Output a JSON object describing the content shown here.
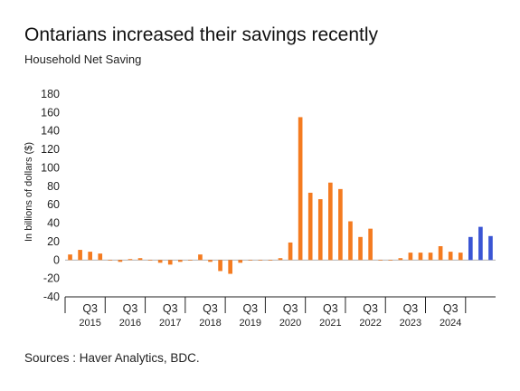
{
  "title": "Ontarians increased their savings recently",
  "subtitle": "Household Net Saving",
  "source": "Sources : Haver Analytics, BDC.",
  "colors": {
    "historical": "#f47b20",
    "forecast": "#3a55d4",
    "axis": "#222222",
    "zero_line": "#999999"
  },
  "chart_data": {
    "type": "bar",
    "ylabel": "In billions of dollars ($)",
    "ylim": [
      -40,
      180
    ],
    "yticks": [
      -40,
      -20,
      0,
      20,
      40,
      60,
      80,
      100,
      120,
      140,
      160,
      180
    ],
    "grid": false,
    "tick_labels": [
      {
        "quarter": "Q3",
        "year": "2015"
      },
      {
        "quarter": "Q3",
        "year": "2016"
      },
      {
        "quarter": "Q3",
        "year": "2017"
      },
      {
        "quarter": "Q3",
        "year": "2018"
      },
      {
        "quarter": "Q3",
        "year": "2019"
      },
      {
        "quarter": "Q3",
        "year": "2020"
      },
      {
        "quarter": "Q3",
        "year": "2021"
      },
      {
        "quarter": "Q3",
        "year": "2022"
      },
      {
        "quarter": "Q3",
        "year": "2023"
      },
      {
        "quarter": "Q3",
        "year": "2024"
      }
    ],
    "series": [
      {
        "values": [
          6,
          11,
          9,
          7,
          0,
          -2,
          1,
          2,
          0,
          -3,
          -5,
          -2,
          0,
          6,
          -2,
          -12,
          -15,
          -3,
          0,
          0,
          0,
          2,
          19,
          155,
          73,
          66,
          84,
          77,
          42,
          25,
          34,
          0,
          0,
          2,
          8,
          8,
          8,
          15,
          9,
          8
        ],
        "color": "#f47b20"
      },
      {
        "values": [
          25,
          36,
          26
        ],
        "color": "#3a55d4"
      }
    ]
  }
}
